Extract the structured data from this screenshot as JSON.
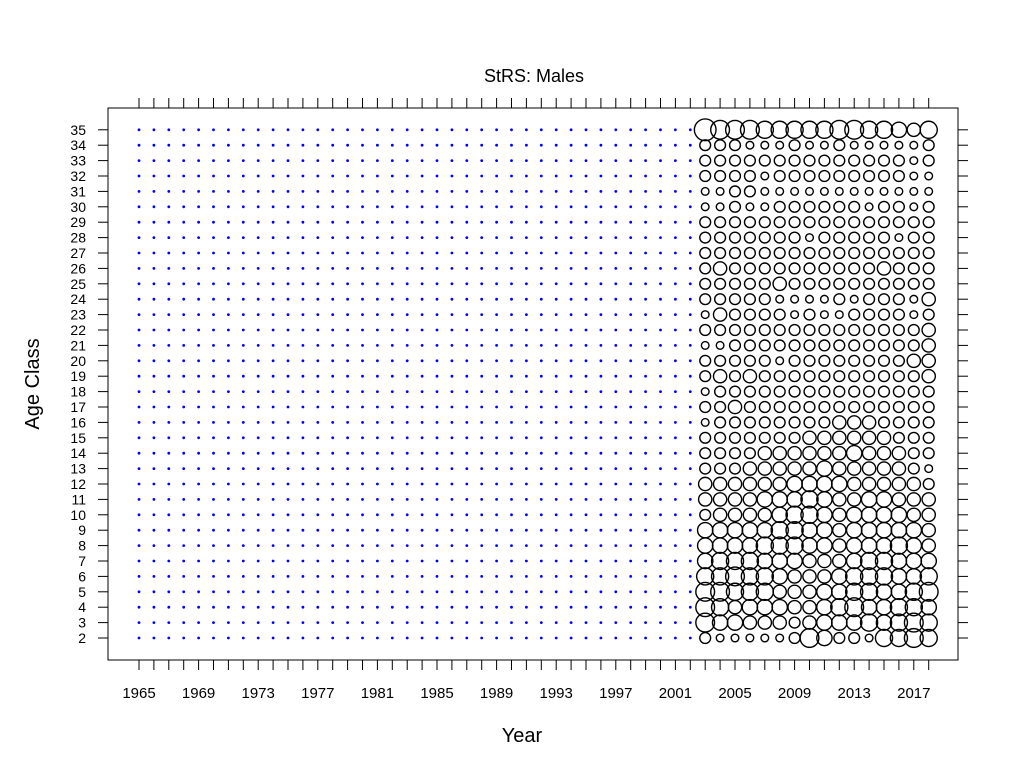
{
  "chart_data": {
    "type": "scatter",
    "subtype": "bubble",
    "title": "StRS: Males",
    "xlabel": "Year",
    "ylabel": "Age Class",
    "xlim": [
      1965,
      2018
    ],
    "ylim": [
      2,
      35
    ],
    "x_tick_labels": [
      "1965",
      "1969",
      "1973",
      "1977",
      "1981",
      "1985",
      "1989",
      "1993",
      "1997",
      "2001",
      "2005",
      "2009",
      "2013",
      "2017"
    ],
    "y_tick_labels": [
      "2",
      "3",
      "4",
      "5",
      "6",
      "7",
      "8",
      "9",
      "10",
      "11",
      "12",
      "13",
      "14",
      "15",
      "16",
      "17",
      "18",
      "19",
      "20",
      "21",
      "22",
      "23",
      "24",
      "25",
      "26",
      "27",
      "28",
      "29",
      "30",
      "31",
      "32",
      "33",
      "34",
      "35"
    ],
    "years": [
      1965,
      1966,
      1967,
      1968,
      1969,
      1970,
      1971,
      1972,
      1973,
      1974,
      1975,
      1976,
      1977,
      1978,
      1979,
      1980,
      1981,
      1982,
      1983,
      1984,
      1985,
      1986,
      1987,
      1988,
      1989,
      1990,
      1991,
      1992,
      1993,
      1994,
      1995,
      1996,
      1997,
      1998,
      1999,
      2000,
      2001,
      2002,
      2003,
      2004,
      2005,
      2006,
      2007,
      2008,
      2009,
      2010,
      2011,
      2012,
      2013,
      2014,
      2015,
      2016,
      2017,
      2018
    ],
    "ages": [
      2,
      3,
      4,
      5,
      6,
      7,
      8,
      9,
      10,
      11,
      12,
      13,
      14,
      15,
      16,
      17,
      18,
      19,
      20,
      21,
      22,
      23,
      24,
      25,
      26,
      27,
      28,
      29,
      30,
      31,
      32,
      33,
      34,
      35
    ],
    "no_data_marker": {
      "color": "#0000ff",
      "description": "blue dot: no observation"
    },
    "bubble_color": "#000000",
    "observed_years": [
      2003,
      2004,
      2005,
      2006,
      2007,
      2008,
      2009,
      2010,
      2011,
      2012,
      2013,
      2014,
      2015,
      2016,
      2017,
      2018
    ],
    "relative_proportions_by_age": {
      "2": [
        0.2,
        0.1,
        0.1,
        0.1,
        0.1,
        0.1,
        0.2,
        0.6,
        0.4,
        0.2,
        0.2,
        0.1,
        0.5,
        0.5,
        0.6,
        0.5
      ],
      "3": [
        0.6,
        0.4,
        0.4,
        0.3,
        0.3,
        0.3,
        0.2,
        0.3,
        0.4,
        0.4,
        0.4,
        0.5,
        0.4,
        0.5,
        0.6,
        0.5
      ],
      "4": [
        0.6,
        0.5,
        0.3,
        0.4,
        0.4,
        0.4,
        0.3,
        0.3,
        0.4,
        0.5,
        0.6,
        0.4,
        0.4,
        0.5,
        0.5,
        0.4
      ],
      "5": [
        0.6,
        0.6,
        0.5,
        0.5,
        0.5,
        0.3,
        0.3,
        0.3,
        0.4,
        0.4,
        0.5,
        0.5,
        0.4,
        0.4,
        0.5,
        0.6
      ],
      "6": [
        0.5,
        0.5,
        0.6,
        0.5,
        0.5,
        0.4,
        0.3,
        0.3,
        0.3,
        0.4,
        0.5,
        0.5,
        0.5,
        0.4,
        0.4,
        0.5
      ],
      "7": [
        0.4,
        0.5,
        0.5,
        0.5,
        0.4,
        0.4,
        0.4,
        0.3,
        0.3,
        0.3,
        0.4,
        0.5,
        0.5,
        0.4,
        0.4,
        0.4
      ],
      "8": [
        0.4,
        0.4,
        0.4,
        0.4,
        0.5,
        0.5,
        0.5,
        0.4,
        0.4,
        0.3,
        0.4,
        0.4,
        0.4,
        0.5,
        0.4,
        0.3
      ],
      "9": [
        0.4,
        0.4,
        0.4,
        0.4,
        0.4,
        0.5,
        0.5,
        0.4,
        0.4,
        0.3,
        0.4,
        0.4,
        0.4,
        0.4,
        0.4,
        0.3
      ],
      "10": [
        0.2,
        0.3,
        0.3,
        0.3,
        0.3,
        0.4,
        0.5,
        0.5,
        0.4,
        0.3,
        0.4,
        0.4,
        0.4,
        0.4,
        0.3,
        0.3
      ],
      "11": [
        0.3,
        0.3,
        0.3,
        0.3,
        0.4,
        0.4,
        0.4,
        0.5,
        0.4,
        0.3,
        0.3,
        0.4,
        0.4,
        0.3,
        0.3,
        0.3
      ],
      "12": [
        0.3,
        0.3,
        0.3,
        0.3,
        0.3,
        0.3,
        0.4,
        0.4,
        0.4,
        0.4,
        0.3,
        0.3,
        0.3,
        0.3,
        0.3,
        0.2
      ],
      "13": [
        0.2,
        0.2,
        0.2,
        0.3,
        0.3,
        0.3,
        0.3,
        0.3,
        0.4,
        0.3,
        0.3,
        0.3,
        0.3,
        0.3,
        0.2,
        0.1
      ],
      "14": [
        0.2,
        0.2,
        0.2,
        0.2,
        0.3,
        0.3,
        0.3,
        0.3,
        0.3,
        0.3,
        0.4,
        0.3,
        0.3,
        0.3,
        0.2,
        0.2
      ],
      "15": [
        0.2,
        0.2,
        0.2,
        0.2,
        0.2,
        0.2,
        0.2,
        0.3,
        0.3,
        0.3,
        0.3,
        0.3,
        0.3,
        0.2,
        0.2,
        0.2
      ],
      "16": [
        0.1,
        0.2,
        0.2,
        0.2,
        0.2,
        0.2,
        0.2,
        0.2,
        0.2,
        0.3,
        0.3,
        0.3,
        0.2,
        0.2,
        0.2,
        0.2
      ],
      "17": [
        0.2,
        0.2,
        0.3,
        0.2,
        0.2,
        0.2,
        0.2,
        0.2,
        0.2,
        0.2,
        0.2,
        0.2,
        0.2,
        0.2,
        0.2,
        0.2
      ],
      "18": [
        0.1,
        0.2,
        0.2,
        0.2,
        0.2,
        0.2,
        0.2,
        0.2,
        0.2,
        0.2,
        0.2,
        0.2,
        0.2,
        0.2,
        0.2,
        0.2
      ],
      "19": [
        0.2,
        0.3,
        0.2,
        0.3,
        0.2,
        0.2,
        0.2,
        0.2,
        0.2,
        0.2,
        0.2,
        0.2,
        0.2,
        0.2,
        0.2,
        0.3
      ],
      "20": [
        0.2,
        0.2,
        0.2,
        0.2,
        0.2,
        0.1,
        0.2,
        0.2,
        0.2,
        0.2,
        0.2,
        0.2,
        0.2,
        0.2,
        0.3,
        0.3
      ],
      "21": [
        0.1,
        0.1,
        0.2,
        0.2,
        0.2,
        0.2,
        0.2,
        0.2,
        0.2,
        0.2,
        0.2,
        0.2,
        0.2,
        0.2,
        0.2,
        0.3
      ],
      "22": [
        0.2,
        0.2,
        0.2,
        0.2,
        0.2,
        0.2,
        0.2,
        0.2,
        0.2,
        0.2,
        0.2,
        0.2,
        0.2,
        0.2,
        0.2,
        0.3
      ],
      "23": [
        0.1,
        0.3,
        0.2,
        0.2,
        0.2,
        0.2,
        0.1,
        0.2,
        0.1,
        0.1,
        0.2,
        0.2,
        0.2,
        0.2,
        0.1,
        0.2
      ],
      "24": [
        0.2,
        0.2,
        0.2,
        0.2,
        0.2,
        0.1,
        0.1,
        0.1,
        0.1,
        0.2,
        0.1,
        0.2,
        0.2,
        0.2,
        0.1,
        0.3
      ],
      "25": [
        0.2,
        0.2,
        0.2,
        0.2,
        0.2,
        0.3,
        0.2,
        0.2,
        0.2,
        0.2,
        0.2,
        0.2,
        0.2,
        0.2,
        0.2,
        0.2
      ],
      "26": [
        0.2,
        0.3,
        0.2,
        0.2,
        0.2,
        0.2,
        0.2,
        0.2,
        0.2,
        0.2,
        0.2,
        0.2,
        0.3,
        0.2,
        0.2,
        0.2
      ],
      "27": [
        0.2,
        0.2,
        0.2,
        0.2,
        0.2,
        0.2,
        0.2,
        0.2,
        0.2,
        0.2,
        0.2,
        0.2,
        0.2,
        0.2,
        0.2,
        0.2
      ],
      "28": [
        0.2,
        0.2,
        0.2,
        0.2,
        0.2,
        0.2,
        0.2,
        0.1,
        0.2,
        0.2,
        0.2,
        0.2,
        0.2,
        0.1,
        0.2,
        0.2
      ],
      "29": [
        0.2,
        0.2,
        0.2,
        0.2,
        0.2,
        0.2,
        0.2,
        0.2,
        0.2,
        0.2,
        0.2,
        0.2,
        0.2,
        0.2,
        0.2,
        0.2
      ],
      "30": [
        0.1,
        0.1,
        0.2,
        0.1,
        0.1,
        0.2,
        0.2,
        0.2,
        0.2,
        0.2,
        0.2,
        0.1,
        0.2,
        0.2,
        0.1,
        0.2
      ],
      "31": [
        0.1,
        0.1,
        0.2,
        0.2,
        0.1,
        0.1,
        0.1,
        0.1,
        0.1,
        0.1,
        0.1,
        0.1,
        0.1,
        0.1,
        0.1,
        0.1
      ],
      "32": [
        0.2,
        0.2,
        0.2,
        0.2,
        0.1,
        0.2,
        0.2,
        0.2,
        0.2,
        0.2,
        0.2,
        0.2,
        0.2,
        0.2,
        0.1,
        0.1
      ],
      "33": [
        0.2,
        0.2,
        0.2,
        0.2,
        0.2,
        0.2,
        0.2,
        0.2,
        0.2,
        0.2,
        0.2,
        0.2,
        0.2,
        0.2,
        0.1,
        0.2
      ],
      "34": [
        0.2,
        0.2,
        0.2,
        0.1,
        0.1,
        0.1,
        0.2,
        0.1,
        0.1,
        0.2,
        0.1,
        0.1,
        0.1,
        0.1,
        0.1,
        0.2
      ],
      "35": [
        0.8,
        0.6,
        0.6,
        0.6,
        0.5,
        0.5,
        0.5,
        0.5,
        0.5,
        0.6,
        0.6,
        0.5,
        0.5,
        0.4,
        0.3,
        0.5
      ]
    },
    "grid": false,
    "legend": "none"
  }
}
